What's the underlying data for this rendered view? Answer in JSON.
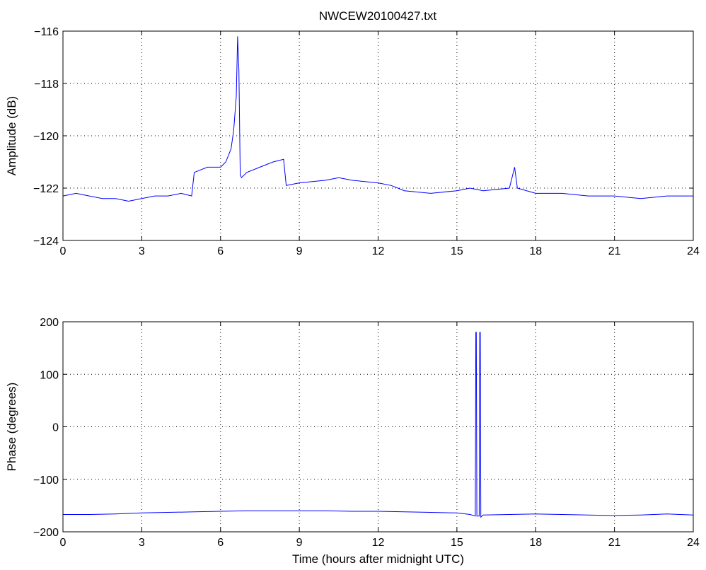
{
  "figure": {
    "title": "NWCEW20100427.txt"
  },
  "chart_data": [
    {
      "type": "line",
      "title": "NWCEW20100427.txt",
      "xlabel": "",
      "ylabel": "Amplitude (dB)",
      "xlim": [
        0,
        24
      ],
      "ylim": [
        -124,
        -116
      ],
      "xticks": [
        0,
        3,
        6,
        9,
        12,
        15,
        18,
        21,
        24
      ],
      "yticks": [
        -124,
        -122,
        -120,
        -118,
        -116
      ],
      "grid": true,
      "color": "#0000ff",
      "series": [
        {
          "x": [
            0,
            0.5,
            1,
            1.5,
            2,
            2.5,
            3,
            3.5,
            4,
            4.5,
            4.9,
            5.0,
            5.5,
            6.0,
            6.2,
            6.4,
            6.5,
            6.6,
            6.65,
            6.7,
            6.75,
            6.8,
            7.0,
            7.5,
            8.0,
            8.4,
            8.5,
            9,
            10,
            10.5,
            11,
            12,
            12.5,
            13,
            14,
            15,
            15.5,
            16,
            17,
            17.2,
            17.3,
            18,
            19,
            20,
            21,
            22,
            23,
            24
          ],
          "values": [
            -122.3,
            -122.2,
            -122.3,
            -122.4,
            -122.4,
            -122.5,
            -122.4,
            -122.3,
            -122.3,
            -122.2,
            -122.3,
            -121.4,
            -121.2,
            -121.2,
            -121.0,
            -120.5,
            -119.8,
            -118.5,
            -116.2,
            -117.5,
            -121.5,
            -121.6,
            -121.4,
            -121.2,
            -121.0,
            -120.9,
            -121.9,
            -121.8,
            -121.7,
            -121.6,
            -121.7,
            -121.8,
            -121.9,
            -122.1,
            -122.2,
            -122.1,
            -122.0,
            -122.1,
            -122.0,
            -121.2,
            -122.0,
            -122.2,
            -122.2,
            -122.3,
            -122.3,
            -122.4,
            -122.3,
            -122.3
          ]
        }
      ]
    },
    {
      "type": "line",
      "title": "",
      "xlabel": "Time (hours after midnight UTC)",
      "ylabel": "Phase (degrees)",
      "xlim": [
        0,
        24
      ],
      "ylim": [
        -200,
        200
      ],
      "xticks": [
        0,
        3,
        6,
        9,
        12,
        15,
        18,
        21,
        24
      ],
      "yticks": [
        -200,
        -100,
        0,
        100,
        200
      ],
      "grid": true,
      "color": "#0000ff",
      "series": [
        {
          "x": [
            0,
            1,
            2,
            3,
            4,
            5,
            6,
            7,
            8,
            9,
            10,
            11,
            12,
            13,
            14,
            15,
            15.5,
            15.7,
            15.72,
            15.74,
            15.76,
            15.85,
            15.87,
            15.89,
            15.91,
            16,
            17,
            18,
            19,
            20,
            21,
            22,
            23,
            24
          ],
          "values": [
            -167,
            -167,
            -166,
            -164,
            -163,
            -162,
            -161,
            -160,
            -160,
            -160,
            -160,
            -161,
            -161,
            -162,
            -163,
            -164,
            -167,
            -170,
            180,
            180,
            -170,
            -170,
            180,
            180,
            -172,
            -168,
            -167,
            -166,
            -167,
            -168,
            -169,
            -168,
            -166,
            -168
          ]
        }
      ]
    }
  ]
}
